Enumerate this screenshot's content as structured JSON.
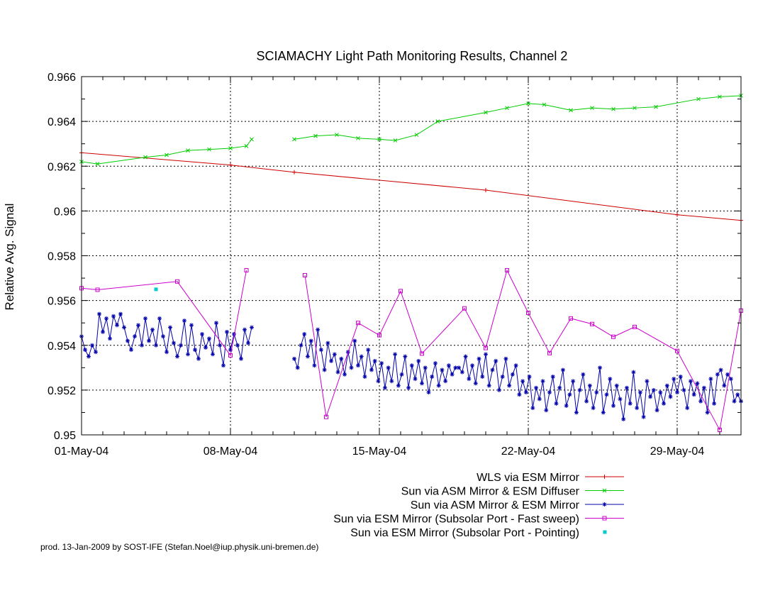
{
  "chart_data": {
    "type": "line",
    "title": "SCIAMACHY Light Path Monitoring Results, Channel 2",
    "ylabel": "Relative Avg. Signal",
    "xlabel": "",
    "xlim": [
      "2004-05-01",
      "2004-06-01"
    ],
    "ylim": [
      0.95,
      0.966
    ],
    "yticks": [
      0.95,
      0.952,
      0.954,
      0.956,
      0.958,
      0.96,
      0.962,
      0.964,
      0.966
    ],
    "ytick_labels": [
      "0.95",
      "0.952",
      "0.954",
      "0.956",
      "0.958",
      "0.96",
      "0.962",
      "0.964",
      "0.966"
    ],
    "xticks": [
      "2004-05-01",
      "2004-05-08",
      "2004-05-15",
      "2004-05-22",
      "2004-05-29"
    ],
    "xtick_labels": [
      "01-May-04",
      "08-May-04",
      "15-May-04",
      "22-May-04",
      "29-May-04"
    ],
    "grid": "dashed vertical and horizontal lines at major ticks",
    "legend_position": "bottom-right",
    "series": [
      {
        "name": "WLS via ESM Mirror",
        "color": "#cc0000",
        "marker": "plus",
        "style": "line",
        "points": [
          [
            "2004-05-01",
            0.9626
          ],
          [
            "2004-05-08",
            0.96205
          ],
          [
            "2004-05-11",
            0.96173
          ],
          [
            "2004-05-20",
            0.96093
          ],
          [
            "2004-05-29",
            0.95983
          ],
          [
            "2004-06-01",
            0.95958
          ]
        ]
      },
      {
        "name": "Sun via ASM Mirror & ESM Diffuser",
        "color": "#00cc00",
        "marker": "x",
        "style": "line",
        "segments": [
          [
            [
              "2004-05-01",
              0.9622
            ],
            [
              "2004-05-01 18:00",
              0.9621
            ],
            [
              "2004-05-04",
              0.9624
            ],
            [
              "2004-05-05",
              0.9625
            ],
            [
              "2004-05-06",
              0.9627
            ],
            [
              "2004-05-07",
              0.96275
            ],
            [
              "2004-05-08",
              0.9628
            ],
            [
              "2004-05-08 18:00",
              0.9629
            ],
            [
              "2004-05-09",
              0.9632
            ]
          ],
          [
            [
              "2004-05-11",
              0.9632
            ],
            [
              "2004-05-12",
              0.96335
            ],
            [
              "2004-05-13",
              0.9634
            ],
            [
              "2004-05-14",
              0.96325
            ],
            [
              "2004-05-15",
              0.9632
            ],
            [
              "2004-05-15 18:00",
              0.96315
            ],
            [
              "2004-05-16 18:00",
              0.9634
            ],
            [
              "2004-05-17 18:00",
              0.964
            ],
            [
              "2004-05-20",
              0.9644
            ],
            [
              "2004-05-21",
              0.9646
            ],
            [
              "2004-05-22",
              0.9648
            ],
            [
              "2004-05-22 18:00",
              0.96475
            ],
            [
              "2004-05-24",
              0.9645
            ],
            [
              "2004-05-25",
              0.9646
            ],
            [
              "2004-05-26",
              0.96455
            ],
            [
              "2004-05-27",
              0.9646
            ],
            [
              "2004-05-28",
              0.96465
            ],
            [
              "2004-05-30",
              0.965
            ],
            [
              "2004-05-31",
              0.9651
            ],
            [
              "2004-06-01",
              0.96515
            ]
          ]
        ]
      },
      {
        "name": "Sun via ASM Mirror & ESM Mirror",
        "color": "#0000aa",
        "marker": "star",
        "style": "line",
        "segments": [
          {
            "start": "2004-05-01",
            "end": "2004-05-09",
            "values": [
              0.9544,
              0.9538,
              0.9535,
              0.954,
              0.9537,
              0.9554,
              0.9546,
              0.9552,
              0.9543,
              0.9553,
              0.9549,
              0.9554,
              0.9548,
              0.9542,
              0.9538,
              0.9544,
              0.9549,
              0.954,
              0.9552,
              0.9542,
              0.9547,
              0.954,
              0.9552,
              0.9544,
              0.9537,
              0.9548,
              0.9541,
              0.9535,
              0.954,
              0.9551,
              0.9536,
              0.9549,
              0.9538,
              0.9534,
              0.9545,
              0.9539,
              0.9543,
              0.9536,
              0.955,
              0.954,
              0.9531,
              0.9546,
              0.9538,
              0.9545,
              0.954,
              0.9534,
              0.9547,
              0.9541,
              0.9548
            ]
          },
          {
            "start": "2004-05-11",
            "end": "2004-06-01",
            "values": [
              0.9534,
              0.953,
              0.954,
              0.9545,
              0.9535,
              0.9542,
              0.9531,
              0.9547,
              0.9538,
              0.9529,
              0.9541,
              0.9533,
              0.9536,
              0.9528,
              0.9534,
              0.9527,
              0.9537,
              0.953,
              0.9542,
              0.9531,
              0.9535,
              0.9526,
              0.9538,
              0.9529,
              0.9533,
              0.9524,
              0.9532,
              0.9521,
              0.953,
              0.9524,
              0.9536,
              0.9522,
              0.9527,
              0.9535,
              0.9521,
              0.9531,
              0.9525,
              0.9533,
              0.9523,
              0.953,
              0.9519,
              0.9526,
              0.9532,
              0.9522,
              0.9529,
              0.9524,
              0.9531,
              0.9527,
              0.953,
              0.953,
              0.9528,
              0.9535,
              0.9525,
              0.9531,
              0.9523,
              0.9534,
              0.9526,
              0.9536,
              0.9522,
              0.9529,
              0.9533,
              0.952,
              0.9526,
              0.9534,
              0.9522,
              0.9527,
              0.9531,
              0.9518,
              0.9524,
              0.9519,
              0.9526,
              0.9512,
              0.9521,
              0.9516,
              0.9524,
              0.9511,
              0.9519,
              0.9526,
              0.9514,
              0.9521,
              0.9529,
              0.9513,
              0.9518,
              0.9524,
              0.951,
              0.952,
              0.9527,
              0.9515,
              0.9522,
              0.9512,
              0.9519,
              0.953,
              0.951,
              0.9518,
              0.9525,
              0.9513,
              0.9522,
              0.9516,
              0.9507,
              0.9521,
              0.9514,
              0.9528,
              0.9512,
              0.9519,
              0.9508,
              0.9524,
              0.9517,
              0.952,
              0.9511,
              0.9519,
              0.9514,
              0.9522,
              0.9517,
              0.9525,
              0.9519,
              0.9526,
              0.952,
              0.9512,
              0.9524,
              0.9518,
              0.9523,
              0.9515,
              0.9521,
              0.951,
              0.9525,
              0.9514,
              0.9527,
              0.9529,
              0.9522,
              0.9527,
              0.9525,
              0.9515,
              0.9518,
              0.9515
            ]
          }
        ]
      },
      {
        "name": "Sun via ESM Mirror (Subsolar Port - Fast sweep)",
        "color": "#cc00cc",
        "marker": "square",
        "style": "line",
        "segments": [
          [
            [
              "2004-05-01",
              0.95655
            ],
            [
              "2004-05-01 18:00",
              0.95648
            ],
            [
              "2004-05-05 12:00",
              0.95685
            ],
            [
              "2004-05-08",
              0.95355
            ],
            [
              "2004-05-08 18:00",
              0.95735
            ]
          ],
          [
            [
              "2004-05-11 12:00",
              0.95713
            ],
            [
              "2004-05-12 12:00",
              0.9508
            ],
            [
              "2004-05-14",
              0.955
            ],
            [
              "2004-05-15",
              0.95445
            ],
            [
              "2004-05-16",
              0.95642
            ],
            [
              "2004-05-17",
              0.95363
            ],
            [
              "2004-05-19",
              0.95565
            ],
            [
              "2004-05-20",
              0.95388
            ],
            [
              "2004-05-21",
              0.95735
            ],
            [
              "2004-05-22",
              0.95545
            ],
            [
              "2004-05-23",
              0.95365
            ],
            [
              "2004-05-24",
              0.9552
            ],
            [
              "2004-05-25",
              0.95495
            ],
            [
              "2004-05-26",
              0.95438
            ],
            [
              "2004-05-27",
              0.95482
            ],
            [
              "2004-05-29",
              0.95375
            ],
            [
              "2004-05-31",
              0.95022
            ],
            [
              "2004-06-01",
              0.95555
            ]
          ]
        ]
      },
      {
        "name": "Sun via ESM Mirror (Subsolar Port - Pointing)",
        "color": "#00cccc",
        "marker": "dot",
        "style": "points",
        "points": [
          [
            "2004-05-04 12:00",
            0.9565
          ]
        ]
      }
    ]
  },
  "footer": "prod. 13-Jan-2009 by SOST-IFE (Stefan.Noel@iup.physik.uni-bremen.de)"
}
